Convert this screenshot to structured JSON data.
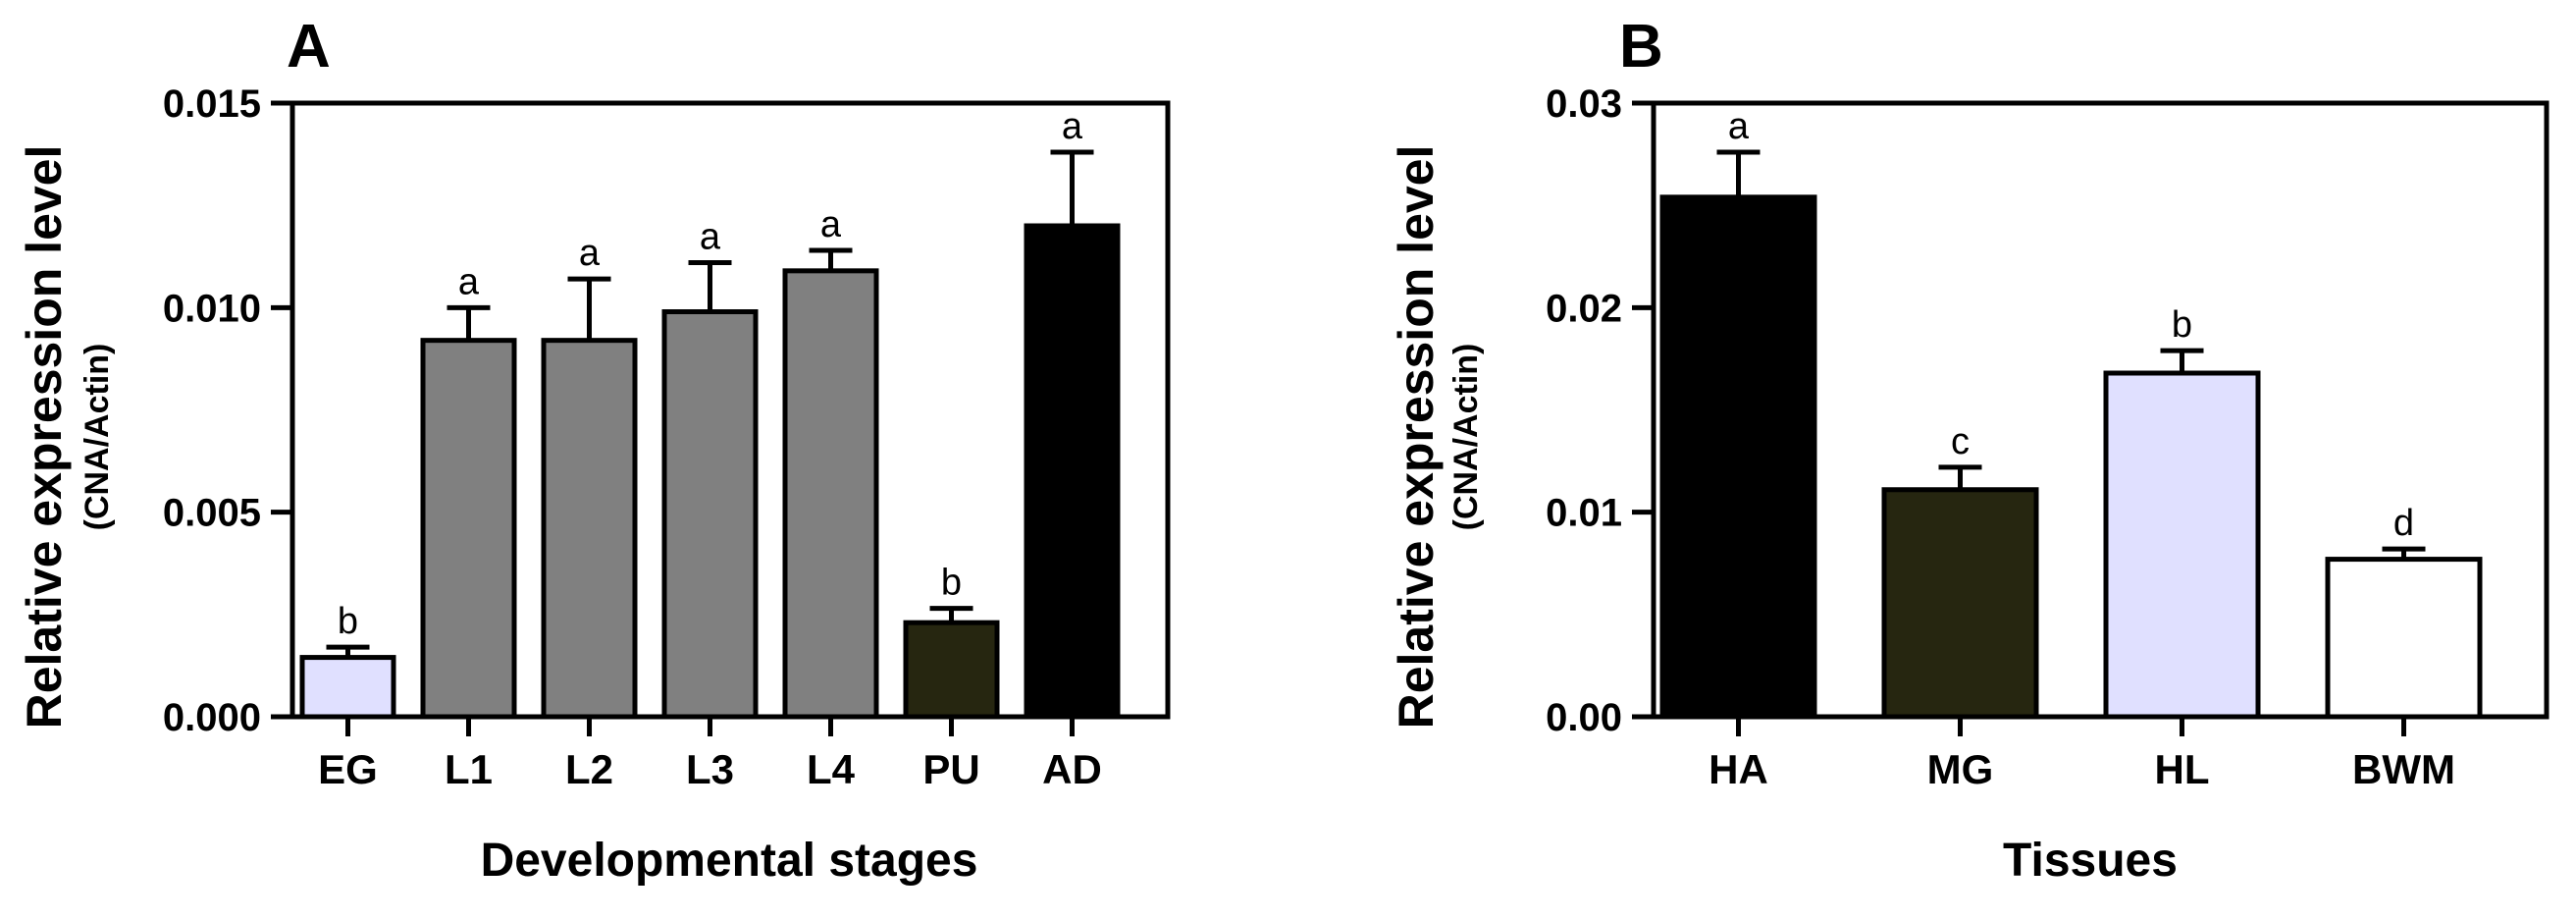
{
  "chart_data": [
    {
      "type": "bar",
      "panel": "A",
      "ylabel": "Relative expression level",
      "ylabel_sub": "(CNA/Actin)",
      "xlabel": "Developmental stages",
      "ylim": [
        0,
        0.015
      ],
      "yticks": [
        {
          "value": 0.0,
          "label": "0.000"
        },
        {
          "value": 0.005,
          "label": "0.005"
        },
        {
          "value": 0.01,
          "label": "0.010"
        },
        {
          "value": 0.015,
          "label": "0.015"
        }
      ],
      "categories": [
        "EG",
        "L1",
        "L2",
        "L3",
        "L4",
        "PU",
        "AD"
      ],
      "values": [
        0.00145,
        0.0092,
        0.0092,
        0.0099,
        0.0109,
        0.0023,
        0.012
      ],
      "errors": [
        0.00025,
        0.0008,
        0.0015,
        0.0012,
        0.0005,
        0.00035,
        0.0018
      ],
      "letters": [
        "b",
        "a",
        "a",
        "a",
        "a",
        "b",
        "a"
      ],
      "colors": [
        "#e0e0ff",
        "#808080",
        "#808080",
        "#808080",
        "#808080",
        "#262610",
        "#000000"
      ]
    },
    {
      "type": "bar",
      "panel": "B",
      "ylabel": "Relative expression level",
      "ylabel_sub": "(CNA/Actin)",
      "xlabel": "Tissues",
      "ylim": [
        0,
        0.03
      ],
      "yticks": [
        {
          "value": 0.0,
          "label": "0.00"
        },
        {
          "value": 0.01,
          "label": "0.01"
        },
        {
          "value": 0.02,
          "label": "0.02"
        },
        {
          "value": 0.03,
          "label": "0.03"
        }
      ],
      "categories": [
        "HA",
        "MG",
        "HL",
        "BWM"
      ],
      "values": [
        0.0254,
        0.0111,
        0.0168,
        0.0077
      ],
      "errors": [
        0.0022,
        0.0011,
        0.0011,
        0.0005
      ],
      "letters": [
        "a",
        "c",
        "b",
        "d"
      ],
      "colors": [
        "#000000",
        "#262610",
        "#e0e0ff",
        "#ffffff"
      ]
    }
  ]
}
